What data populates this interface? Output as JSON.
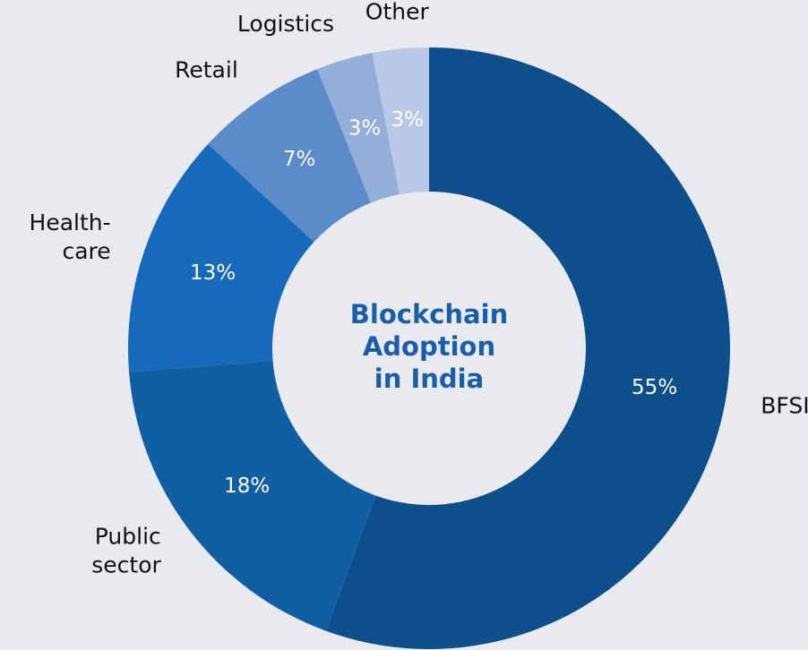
{
  "chart_data": {
    "type": "donut",
    "title": "Blockchain Adoption in India",
    "categories": [
      "BFSI",
      "Public sector",
      "Health-care",
      "Retail",
      "Logistics",
      "Other"
    ],
    "values": [
      55,
      18,
      13,
      7,
      3,
      3
    ],
    "value_labels": [
      "55%",
      "18%",
      "13%",
      "7%",
      "3%",
      "3%"
    ],
    "colors": [
      "#0d4f8b",
      "#115ea3",
      "#176ab9",
      "#5b8bc9",
      "#93aed9",
      "#b8c8e6"
    ]
  }
}
